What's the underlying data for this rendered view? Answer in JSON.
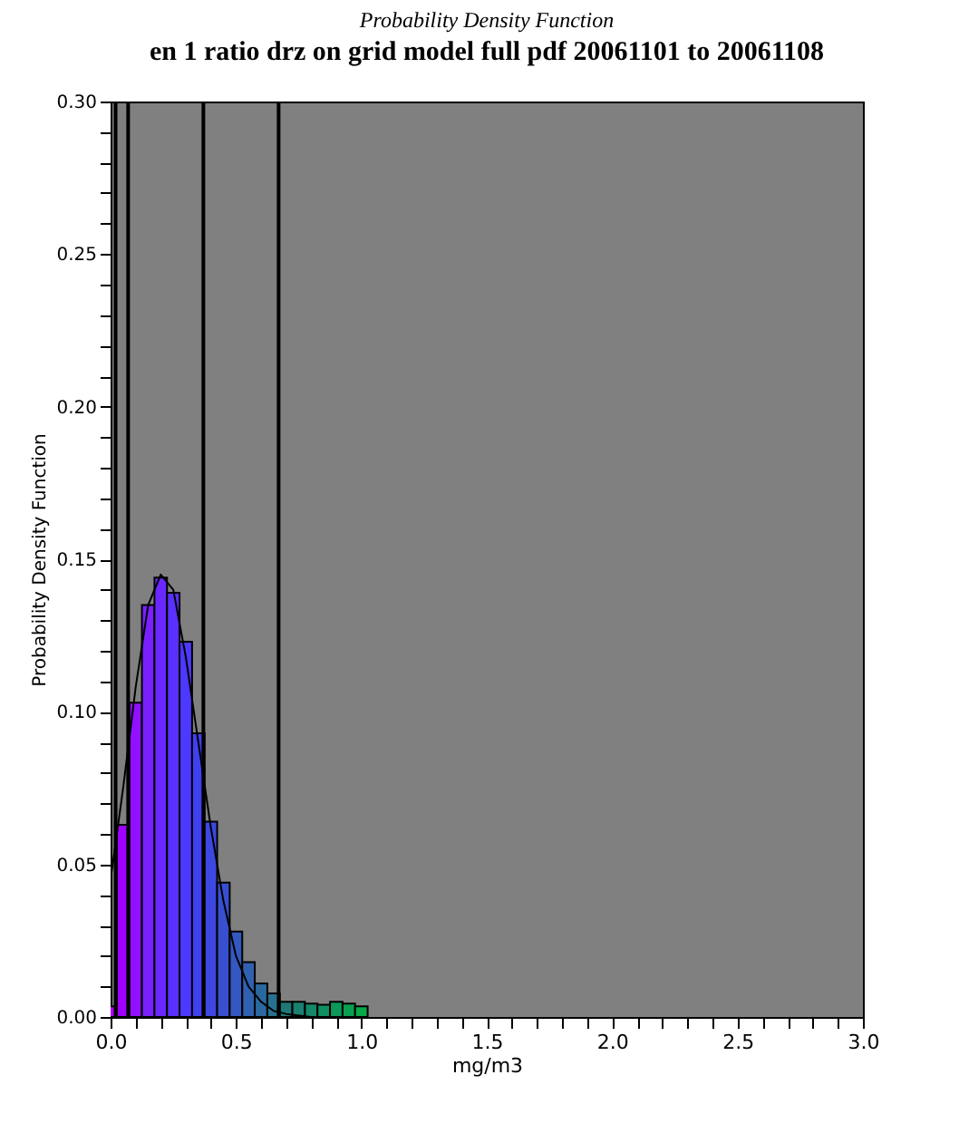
{
  "chart_data": {
    "type": "histogram",
    "title": "Probability Density Function",
    "subtitle": "en 1 ratio drz on grid model full pdf 20061101 to 20061108",
    "xlabel": "mg/m3",
    "ylabel": "Probability Density Function",
    "bins": [
      -0.025,
      0.025,
      0.075,
      0.125,
      0.175,
      0.225,
      0.275,
      0.325,
      0.375,
      0.425,
      0.475,
      0.525,
      0.575,
      0.625,
      0.675,
      0.725,
      0.775,
      0.825,
      0.875,
      0.925,
      0.975,
      1.025
    ],
    "values": [
      0.0035,
      0.063,
      0.103,
      0.135,
      0.144,
      0.139,
      0.123,
      0.093,
      0.064,
      0.044,
      0.028,
      0.018,
      0.011,
      0.0077,
      0.005,
      0.005,
      0.0044,
      0.004,
      0.005,
      0.0044,
      0.0035
    ],
    "colors": [
      "#b000ff",
      "#a000ff",
      "#9010ff",
      "#7a20ff",
      "#6a28ff",
      "#5a30ff",
      "#4c38ff",
      "#4040f0",
      "#3c48e0",
      "#3850d0",
      "#3458c0",
      "#3060b0",
      "#2c68a0",
      "#287090",
      "#207878",
      "#1a8070",
      "#158868",
      "#109060",
      "#0c9858",
      "#08a050",
      "#08a848"
    ],
    "series": [
      {
        "type": "line",
        "color": "#000000",
        "x": [
          0,
          0.05,
          0.1,
          0.15,
          0.2,
          0.25,
          0.3,
          0.35,
          0.4,
          0.45,
          0.5,
          0.55,
          0.6,
          0.65,
          0.7,
          0.8
        ],
        "values": [
          0.045,
          0.075,
          0.108,
          0.135,
          0.145,
          0.14,
          0.118,
          0.09,
          0.062,
          0.038,
          0.02,
          0.01,
          0.005,
          0.002,
          0.001,
          0.0
        ]
      }
    ],
    "ref_lines": [
      {
        "axis": "x",
        "value": 0.02,
        "color": "#000000"
      },
      {
        "axis": "x",
        "value": 0.07,
        "color": "#000000"
      },
      {
        "axis": "x",
        "value": 0.37,
        "color": "#000000"
      },
      {
        "axis": "x",
        "value": 0.67,
        "color": "#000000"
      }
    ],
    "xlim": [
      0,
      3
    ],
    "ylim": [
      0,
      0.3
    ],
    "xticks": [
      {
        "value": 0,
        "label": "0.0"
      },
      {
        "value": 0.1,
        "label": null
      },
      {
        "value": 0.2,
        "label": null
      },
      {
        "value": 0.3,
        "label": null
      },
      {
        "value": 0.4,
        "label": null
      },
      {
        "value": 0.5,
        "label": "0.5"
      },
      {
        "value": 0.6,
        "label": null
      },
      {
        "value": 0.7,
        "label": null
      },
      {
        "value": 0.8,
        "label": null
      },
      {
        "value": 0.9,
        "label": null
      },
      {
        "value": 1.0,
        "label": "1.0"
      },
      {
        "value": 1.1,
        "label": null
      },
      {
        "value": 1.2,
        "label": null
      },
      {
        "value": 1.3,
        "label": null
      },
      {
        "value": 1.4,
        "label": null
      },
      {
        "value": 1.5,
        "label": "1.5"
      },
      {
        "value": 1.6,
        "label": null
      },
      {
        "value": 1.7,
        "label": null
      },
      {
        "value": 1.8,
        "label": null
      },
      {
        "value": 1.9,
        "label": null
      },
      {
        "value": 2.0,
        "label": "2.0"
      },
      {
        "value": 2.1,
        "label": null
      },
      {
        "value": 2.2,
        "label": null
      },
      {
        "value": 2.3,
        "label": null
      },
      {
        "value": 2.4,
        "label": null
      },
      {
        "value": 2.5,
        "label": "2.5"
      },
      {
        "value": 2.6,
        "label": null
      },
      {
        "value": 2.7,
        "label": null
      },
      {
        "value": 2.8,
        "label": null
      },
      {
        "value": 2.9,
        "label": null
      },
      {
        "value": 3.0,
        "label": "3.0"
      }
    ],
    "yticks": [
      {
        "value": 0,
        "label": "0.00"
      },
      {
        "value": 0.01,
        "label": null
      },
      {
        "value": 0.02,
        "label": null
      },
      {
        "value": 0.03,
        "label": null
      },
      {
        "value": 0.04,
        "label": null
      },
      {
        "value": 0.05,
        "label": "0.05"
      },
      {
        "value": 0.06,
        "label": null
      },
      {
        "value": 0.07,
        "label": null
      },
      {
        "value": 0.08,
        "label": null
      },
      {
        "value": 0.09,
        "label": null
      },
      {
        "value": 0.1,
        "label": "0.10"
      },
      {
        "value": 0.11,
        "label": null
      },
      {
        "value": 0.12,
        "label": null
      },
      {
        "value": 0.13,
        "label": null
      },
      {
        "value": 0.14,
        "label": null
      },
      {
        "value": 0.15,
        "label": "0.15"
      },
      {
        "value": 0.16,
        "label": null
      },
      {
        "value": 0.17,
        "label": null
      },
      {
        "value": 0.18,
        "label": null
      },
      {
        "value": 0.19,
        "label": null
      },
      {
        "value": 0.2,
        "label": "0.20"
      },
      {
        "value": 0.21,
        "label": null
      },
      {
        "value": 0.22,
        "label": null
      },
      {
        "value": 0.23,
        "label": null
      },
      {
        "value": 0.24,
        "label": null
      },
      {
        "value": 0.25,
        "label": "0.25"
      },
      {
        "value": 0.26,
        "label": null
      },
      {
        "value": 0.27,
        "label": null
      },
      {
        "value": 0.28,
        "label": null
      },
      {
        "value": 0.29,
        "label": null
      },
      {
        "value": 0.3,
        "label": "0.30"
      }
    ],
    "grid": false
  }
}
